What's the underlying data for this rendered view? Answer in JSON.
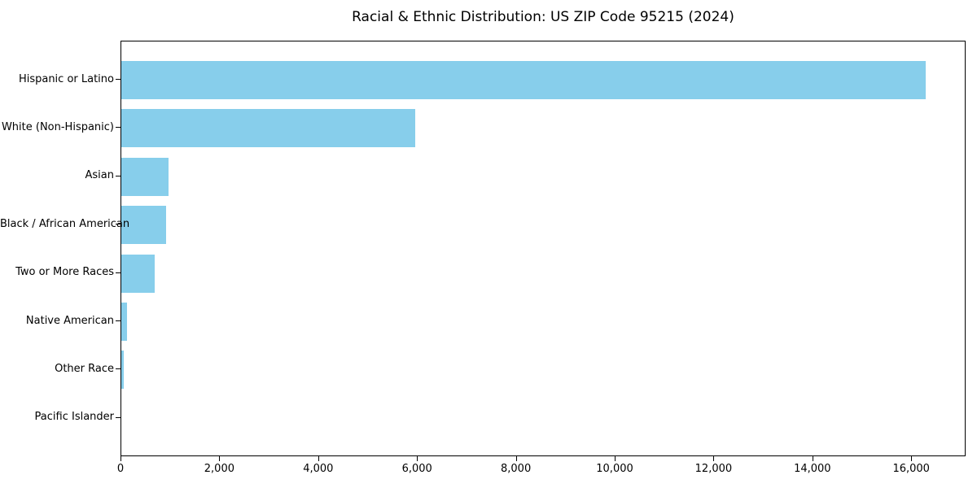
{
  "chart_data": {
    "type": "bar",
    "orientation": "horizontal",
    "title": "Racial & Ethnic Distribution: US ZIP Code 95215 (2024)",
    "categories": [
      "Hispanic or Latino",
      "White (Non-Hispanic)",
      "Asian",
      "Black / African American",
      "Two or More Races",
      "Native American",
      "Other Race",
      "Pacific Islander"
    ],
    "values": [
      16270,
      5950,
      960,
      900,
      680,
      120,
      50,
      0
    ],
    "xlabel": "",
    "ylabel": "",
    "xlim": [
      0,
      17100
    ],
    "x_ticks": [
      0,
      2000,
      4000,
      6000,
      8000,
      10000,
      12000,
      14000,
      16000
    ],
    "x_tick_labels": [
      "0",
      "2,000",
      "4,000",
      "6,000",
      "8,000",
      "10,000",
      "12,000",
      "14,000",
      "16,000"
    ],
    "bar_color": "#87ceeb",
    "text_color": "#000000",
    "grid": false,
    "legend": null
  }
}
